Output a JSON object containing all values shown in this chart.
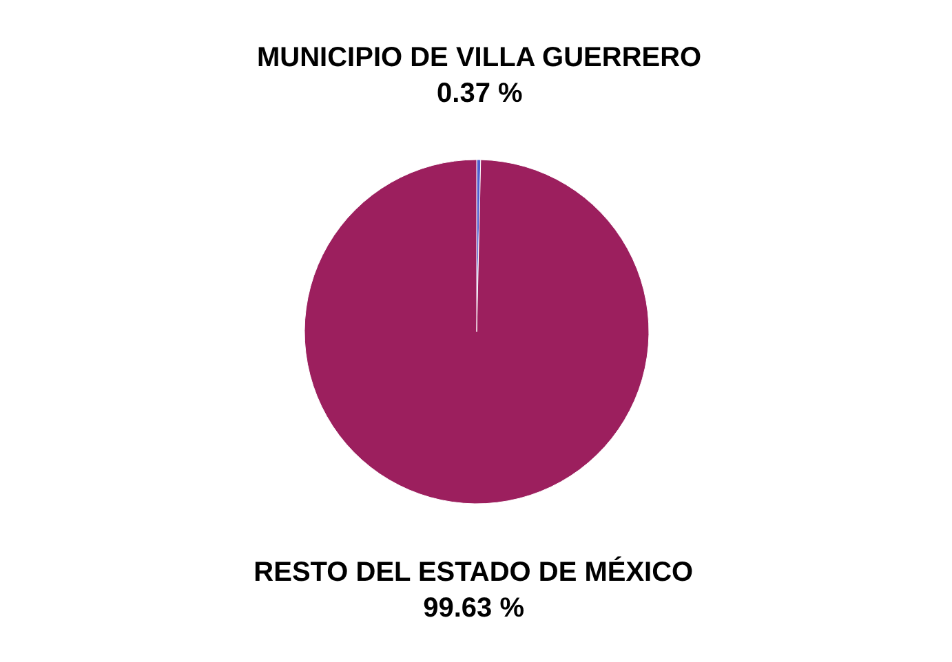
{
  "chart_data": {
    "type": "pie",
    "categories": [
      "MUNICIPIO DE VILLA GUERRERO",
      "RESTO DEL ESTADO DE MÉXICO"
    ],
    "values": [
      0.37,
      99.63
    ],
    "colors": [
      "#4f5fd0",
      "#9c1f5e"
    ],
    "value_labels": [
      "0.37 %",
      "99.63 %"
    ]
  }
}
